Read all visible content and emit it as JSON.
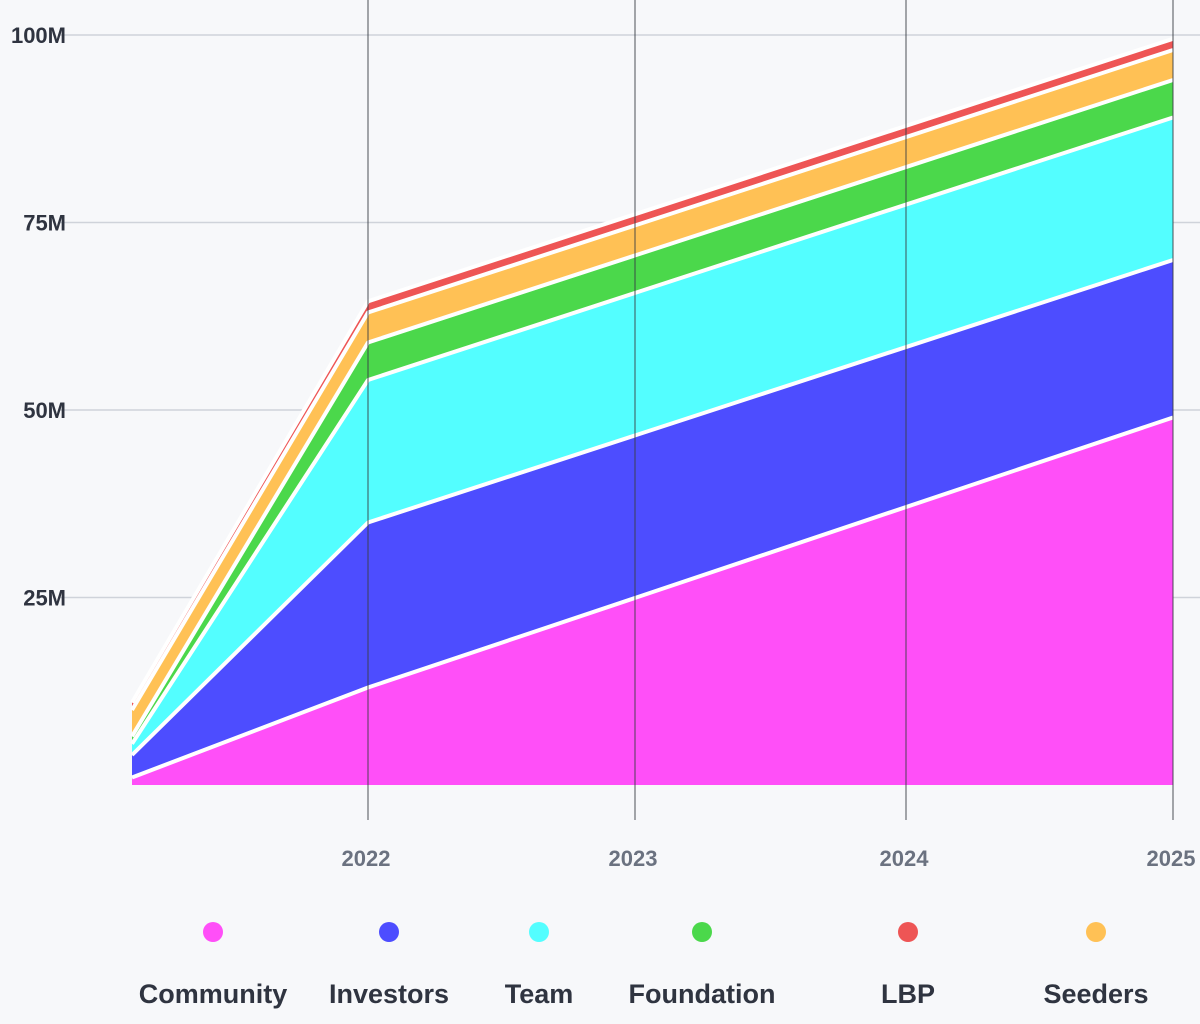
{
  "chart_data": {
    "type": "area",
    "stacked": true,
    "title": "",
    "xlabel": "",
    "ylabel": "",
    "x_start": 2021.1,
    "x_end": 2025,
    "x_breakpoint": 2022,
    "ylim": [
      0,
      100000000
    ],
    "yticks": [
      {
        "value": 25000000,
        "label": "25M"
      },
      {
        "value": 50000000,
        "label": "50M"
      },
      {
        "value": 75000000,
        "label": "75M"
      },
      {
        "value": 100000000,
        "label": "100M"
      }
    ],
    "xticks": [
      {
        "value": 2022,
        "label": "2022"
      },
      {
        "value": 2023,
        "label": "2023"
      },
      {
        "value": 2024,
        "label": "2024"
      },
      {
        "value": 2025,
        "label": "2025"
      }
    ],
    "x": [
      "start",
      "2022",
      "2025"
    ],
    "series": [
      {
        "name": "Community",
        "color": "#ff4ff8",
        "values": [
          1000000,
          13000000,
          49000000
        ]
      },
      {
        "name": "Investors",
        "color": "#4d4dff",
        "values": [
          3000000,
          22000000,
          21000000
        ]
      },
      {
        "name": "Team",
        "color": "#53feff",
        "values": [
          1500000,
          19000000,
          19000000
        ]
      },
      {
        "name": "Foundation",
        "color": "#4bd84b",
        "values": [
          1000000,
          5000000,
          5000000
        ]
      },
      {
        "name": "Seeders",
        "color": "#ffc155",
        "values": [
          3500000,
          4000000,
          4000000
        ]
      },
      {
        "name": "LBP",
        "color": "#ee5555",
        "values": [
          1000000,
          1500000,
          1500000
        ]
      }
    ],
    "legend": {
      "position": "bottom",
      "items": [
        {
          "label": "Community",
          "color": "#ff4ff8"
        },
        {
          "label": "Investors",
          "color": "#4d4dff"
        },
        {
          "label": "Team",
          "color": "#53feff"
        },
        {
          "label": "Foundation",
          "color": "#4bd84b"
        },
        {
          "label": "LBP",
          "color": "#ee5555"
        },
        {
          "label": "Seeders",
          "color": "#ffc155"
        }
      ]
    },
    "grid": true
  }
}
